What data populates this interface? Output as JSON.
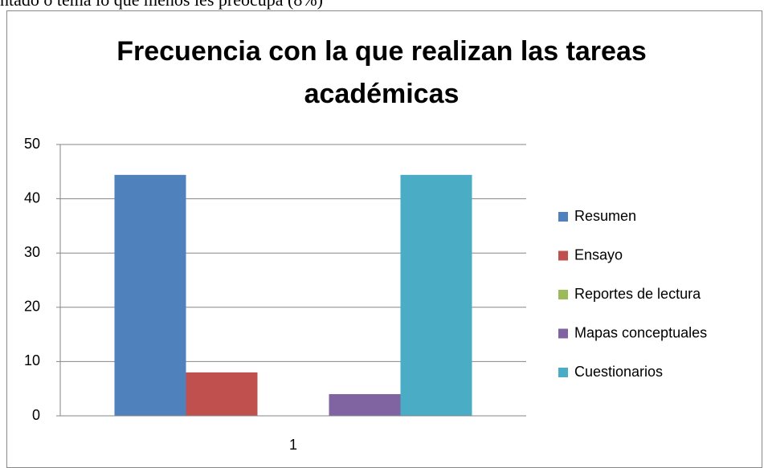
{
  "text_above": "ntado o tema lo que menos les preocupa (8%)",
  "chart_data": {
    "type": "bar",
    "title": "Frecuencia con la que realizan las tareas académicas",
    "categories": [
      "1"
    ],
    "series": [
      {
        "name": "Resumen",
        "color": "#4f81bd",
        "values": [
          44.4
        ]
      },
      {
        "name": "Ensayo",
        "color": "#c0504d",
        "values": [
          8
        ]
      },
      {
        "name": "Reportes de lectura",
        "color": "#9bbb59",
        "values": [
          0
        ]
      },
      {
        "name": "Mapas conceptuales",
        "color": "#8064a2",
        "values": [
          4
        ]
      },
      {
        "name": "Cuestionarios",
        "color": "#4bacc6",
        "values": [
          44.4
        ]
      }
    ],
    "ylim": [
      0,
      50
    ],
    "yticks": [
      0,
      10,
      20,
      30,
      40,
      50
    ],
    "grid": true,
    "legend": "right"
  }
}
